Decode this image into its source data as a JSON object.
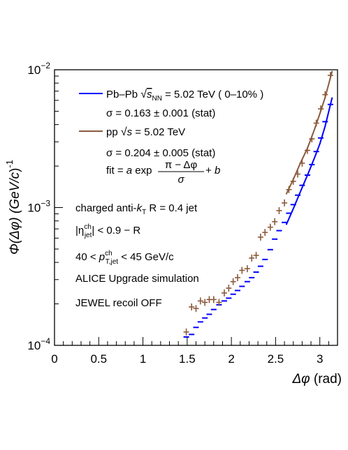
{
  "chart_data": {
    "type": "scatter",
    "title": "",
    "xlabel": "Δφ (rad)",
    "ylabel": "Φ(Δφ) (GeV/c)⁻¹",
    "ylabel_parts": {
      "lhs": "Φ(Δφ) (GeV/",
      "c": "c",
      "rhs": ")",
      "exp": "-1"
    },
    "xlabel_parts": {
      "sym": "Δφ",
      "unit": " (rad)"
    },
    "xlim": [
      0,
      3.2
    ],
    "ylim": [
      0.0001,
      0.01
    ],
    "yscale": "log",
    "grid": false,
    "legend_placement": "top-left",
    "x_ticks": [
      {
        "value": 0,
        "label": "0"
      },
      {
        "value": 0.5,
        "label": "0.5"
      },
      {
        "value": 1,
        "label": "1"
      },
      {
        "value": 1.5,
        "label": "1.5"
      },
      {
        "value": 2,
        "label": "2"
      },
      {
        "value": 2.5,
        "label": "2.5"
      },
      {
        "value": 3,
        "label": "3"
      }
    ],
    "y_ticks": [
      {
        "value": 0.0001,
        "base": "10",
        "exp": "−4"
      },
      {
        "value": 0.001,
        "base": "10",
        "exp": "−3"
      },
      {
        "value": 0.01,
        "base": "10",
        "exp": "−2"
      }
    ],
    "series": [
      {
        "name": "Pb–Pb √sNN = 5.02 TeV ( 0–10% )",
        "color": "#0000ff",
        "marker": "dash",
        "points": [
          [
            1.49,
            0.000115
          ],
          [
            1.55,
            0.00012
          ],
          [
            1.6,
            0.000135
          ],
          [
            1.65,
            0.000148
          ],
          [
            1.7,
            0.000158
          ],
          [
            1.75,
            0.000168
          ],
          [
            1.8,
            0.000182
          ],
          [
            1.86,
            0.000197
          ],
          [
            1.92,
            0.00021
          ],
          [
            1.97,
            0.00022
          ],
          [
            2.02,
            0.000235
          ],
          [
            2.07,
            0.00025
          ],
          [
            2.12,
            0.000268
          ],
          [
            2.18,
            0.00029
          ],
          [
            2.23,
            0.00031
          ],
          [
            2.28,
            0.00034
          ],
          [
            2.33,
            0.000375
          ],
          [
            2.38,
            0.00042
          ],
          [
            2.44,
            0.000495
          ],
          [
            2.49,
            0.00059
          ],
          [
            2.54,
            0.00068
          ],
          [
            2.6,
            0.00078
          ],
          [
            2.65,
            0.00091
          ],
          [
            2.7,
            0.00105
          ],
          [
            2.75,
            0.00123
          ],
          [
            2.8,
            0.00145
          ],
          [
            2.86,
            0.00172
          ],
          [
            2.91,
            0.00205
          ],
          [
            2.96,
            0.00255
          ],
          [
            3.01,
            0.0032
          ],
          [
            3.06,
            0.0042
          ],
          [
            3.12,
            0.0056
          ]
        ],
        "fit": [
          [
            2.62,
            0.00075
          ],
          [
            2.7,
            0.00098
          ],
          [
            2.78,
            0.0013
          ],
          [
            2.86,
            0.00172
          ],
          [
            2.94,
            0.0023
          ],
          [
            3.0,
            0.0029
          ],
          [
            3.06,
            0.0039
          ],
          [
            3.14,
            0.0063
          ]
        ]
      },
      {
        "name": "pp √s = 5.02 TeV",
        "color": "#8b5a3c",
        "marker": "cross",
        "points": [
          [
            1.49,
            0.000125
          ],
          [
            1.55,
            0.00019
          ],
          [
            1.6,
            0.000185
          ],
          [
            1.65,
            0.00021
          ],
          [
            1.7,
            0.000205
          ],
          [
            1.75,
            0.000215
          ],
          [
            1.8,
            0.000215
          ],
          [
            1.86,
            0.000205
          ],
          [
            1.92,
            0.00024
          ],
          [
            1.97,
            0.00026
          ],
          [
            2.02,
            0.00029
          ],
          [
            2.07,
            0.00031
          ],
          [
            2.12,
            0.00035
          ],
          [
            2.18,
            0.00036
          ],
          [
            2.23,
            0.00043
          ],
          [
            2.28,
            0.00045
          ],
          [
            2.33,
            0.00061
          ],
          [
            2.38,
            0.00066
          ],
          [
            2.44,
            0.00072
          ],
          [
            2.49,
            0.00079
          ],
          [
            2.54,
            0.00095
          ],
          [
            2.6,
            0.00108
          ],
          [
            2.65,
            0.00135
          ],
          [
            2.7,
            0.00155
          ],
          [
            2.75,
            0.00175
          ],
          [
            2.8,
            0.0021
          ],
          [
            2.86,
            0.0026
          ],
          [
            2.91,
            0.00315
          ],
          [
            2.96,
            0.0041
          ],
          [
            3.01,
            0.0052
          ],
          [
            3.06,
            0.0066
          ],
          [
            3.12,
            0.0091
          ]
        ],
        "fit": [
          [
            2.62,
            0.00125
          ],
          [
            2.7,
            0.0016
          ],
          [
            2.78,
            0.0021
          ],
          [
            2.86,
            0.0027
          ],
          [
            2.94,
            0.0037
          ],
          [
            3.0,
            0.0048
          ],
          [
            3.06,
            0.0063
          ],
          [
            3.14,
            0.0098
          ]
        ]
      }
    ],
    "legend": {
      "pbpb": {
        "pre": "Pb–Pb ",
        "sub": "NN",
        "post": " = 5.02 TeV ( 0–10% )"
      },
      "pbpb_sigma": "σ = 0.163 ± 0.001 (stat)",
      "pp": {
        "pre": "pp ",
        "post": " = 5.02 TeV"
      },
      "pp_sigma": "σ = 0.204 ± 0.005 (stat)",
      "fit": {
        "lhs": "fit = ",
        "a": "a",
        "exp": " exp ",
        "num": "π − Δφ",
        "den": "σ",
        "tail": " + ",
        "b": "b"
      }
    },
    "annotations": [
      {
        "pre": "charged anti-",
        "k": "k",
        "ksub": "T",
        "post": " R = 0.4 jet"
      },
      {
        "eta": "|η",
        "sup": "ch",
        "sub": "jet",
        "post": "| < 0.9 − R"
      },
      {
        "pre": "40 < ",
        "p": "p",
        "sup": "ch",
        "sub": "T,jet",
        "post": " < 45 GeV/c"
      },
      {
        "text": "ALICE Upgrade simulation"
      },
      {
        "text": "JEWEL recoil OFF"
      }
    ]
  }
}
